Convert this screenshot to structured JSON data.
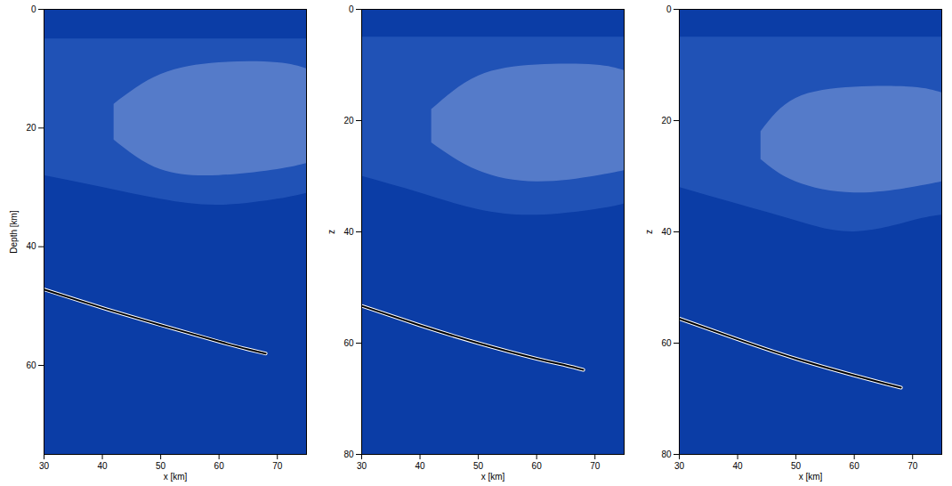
{
  "chart_data": [
    {
      "type": "line",
      "color": "#0b3da6",
      "xlabel": "x [km]",
      "ylabel": "Depth [km]",
      "xlim": [
        30,
        75
      ],
      "xticks": [
        30,
        40,
        50,
        60,
        70
      ],
      "ylim": [
        0,
        75
      ],
      "yticks": [
        0,
        20,
        40,
        60
      ],
      "series": [
        {
          "type": "area",
          "color": "#2556b8",
          "x": [
            30,
            40,
            50,
            60,
            70,
            75
          ],
          "top": [
            5,
            5,
            5,
            5,
            5,
            5
          ],
          "bottom": [
            28,
            30,
            32,
            33,
            32,
            31
          ]
        },
        {
          "type": "area",
          "color": "#5f83cc",
          "x": [
            42,
            50,
            60,
            70,
            75
          ],
          "top": [
            16,
            11,
            9,
            9,
            10
          ],
          "bottom": [
            22,
            27,
            28,
            27,
            26
          ]
        },
        {
          "color": "#000000",
          "x": [
            30,
            40,
            50,
            60,
            65,
            68
          ],
          "values": [
            47.2,
            50.3,
            53.2,
            56,
            57.3,
            58
          ]
        }
      ]
    },
    {
      "type": "line",
      "color": "#0b3da6",
      "xlabel": "x [km]",
      "ylabel": "z",
      "xlim": [
        30,
        75
      ],
      "xticks": [
        30,
        40,
        50,
        60,
        70
      ],
      "ylim": [
        0,
        80
      ],
      "yticks": [
        0,
        20,
        40,
        60,
        80
      ],
      "series": [
        {
          "type": "area",
          "color": "#2556b8",
          "x": [
            30,
            40,
            50,
            60,
            70,
            75
          ],
          "top": [
            5,
            5,
            5,
            5,
            5,
            5
          ],
          "bottom": [
            30,
            33,
            36,
            37,
            36,
            35
          ]
        },
        {
          "type": "area",
          "color": "#5f83cc",
          "x": [
            42,
            50,
            60,
            70,
            75
          ],
          "top": [
            18,
            12,
            10,
            10,
            11
          ],
          "bottom": [
            24,
            29,
            31,
            30,
            29
          ]
        },
        {
          "color": "#000000",
          "x": [
            30,
            40,
            50,
            60,
            65,
            68
          ],
          "values": [
            53.3,
            56.8,
            60,
            62.8,
            64,
            64.8
          ]
        }
      ]
    },
    {
      "type": "line",
      "color": "#0b3da6",
      "xlabel": "x [km]",
      "ylabel": "z",
      "xlim": [
        30,
        75
      ],
      "xticks": [
        30,
        40,
        50,
        60,
        70
      ],
      "ylim": [
        0,
        80
      ],
      "yticks": [
        0,
        20,
        40,
        60,
        80
      ],
      "series": [
        {
          "type": "area",
          "color": "#2556b8",
          "x": [
            30,
            40,
            50,
            60,
            70,
            75
          ],
          "top": [
            5,
            5,
            5,
            5,
            5,
            5
          ],
          "bottom": [
            32,
            35,
            38,
            40,
            38,
            37
          ]
        },
        {
          "type": "area",
          "color": "#5f83cc",
          "x": [
            44,
            50,
            60,
            70,
            75
          ],
          "top": [
            22,
            16,
            14,
            14,
            15
          ],
          "bottom": [
            27,
            31,
            33,
            32,
            31
          ]
        },
        {
          "color": "#000000",
          "x": [
            30,
            40,
            50,
            60,
            65,
            68
          ],
          "values": [
            55.6,
            59.3,
            62.8,
            65.8,
            67.2,
            68
          ]
        }
      ]
    }
  ]
}
